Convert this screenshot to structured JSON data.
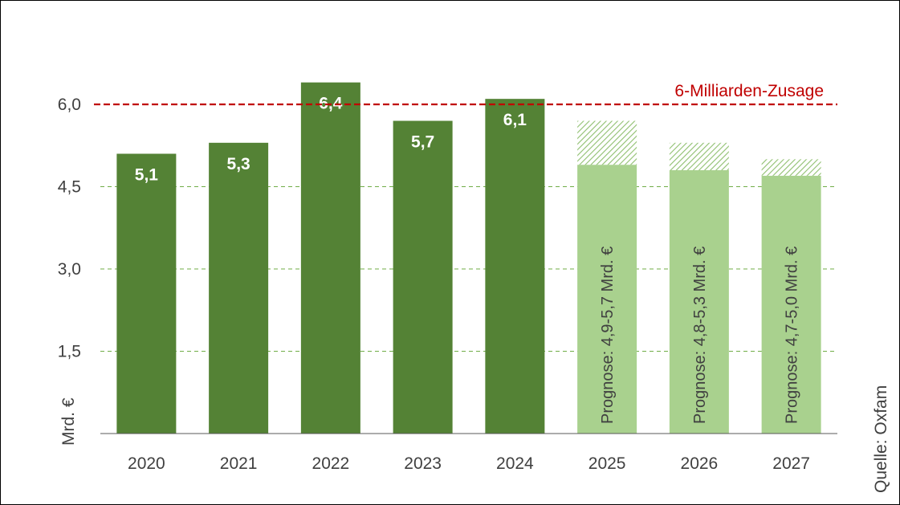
{
  "chart_data": {
    "type": "bar",
    "categories": [
      "2020",
      "2021",
      "2022",
      "2023",
      "2024",
      "2025",
      "2026",
      "2027"
    ],
    "values": [
      5.1,
      5.3,
      6.4,
      5.7,
      6.1,
      null,
      null,
      null
    ],
    "value_labels": [
      "5,1",
      "5,3",
      "6,4",
      "5,7",
      "6,1",
      "",
      "",
      ""
    ],
    "forecast": [
      {
        "category": "2025",
        "low": 4.9,
        "high": 5.7,
        "label": "Prognose: 4,9-5,7 Mrd. €"
      },
      {
        "category": "2026",
        "low": 4.8,
        "high": 5.3,
        "label": "Prognose: 4,8-5,3 Mrd. €"
      },
      {
        "category": "2027",
        "low": 4.7,
        "high": 5.0,
        "label": "Prognose: 4,7-5,0 Mrd. €"
      }
    ],
    "reference_line": {
      "value": 6.0,
      "label": "6-Milliarden-Zusage",
      "color": "#c00000"
    },
    "ylabel": "Mrd. €",
    "ylim": [
      0,
      6.0
    ],
    "yticks": [
      1.5,
      3.0,
      4.5,
      6.0
    ],
    "ytick_labels": [
      "1,5",
      "3,0",
      "4,5",
      "6,0"
    ],
    "grid": "horizontal dashed",
    "source": "Quelle: Oxfam",
    "colors": {
      "actual": "#548235",
      "forecast": "#a9d18e",
      "reference": "#c00000"
    }
  }
}
